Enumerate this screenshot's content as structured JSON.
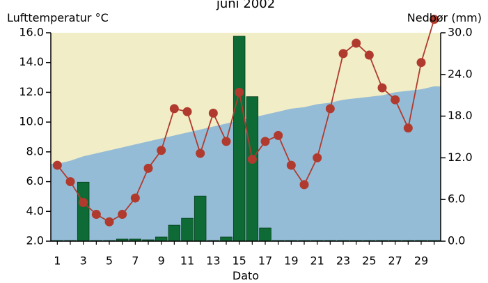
{
  "chart_data": {
    "type": "bar+line",
    "title": "juni 2002",
    "xlabel": "Dato",
    "ylabel_left": "Lufttemperatur °C",
    "ylabel_right": "Nedbør (mm)",
    "x": [
      1,
      2,
      3,
      4,
      5,
      6,
      7,
      8,
      9,
      10,
      11,
      12,
      13,
      14,
      15,
      16,
      17,
      18,
      19,
      20,
      21,
      22,
      23,
      24,
      25,
      26,
      27,
      28,
      29,
      30
    ],
    "x_tick_labels": [
      "1",
      "3",
      "5",
      "7",
      "9",
      "11",
      "13",
      "15",
      "17",
      "19",
      "21",
      "23",
      "25",
      "27",
      "29"
    ],
    "ylim_left": [
      2.0,
      16.0
    ],
    "y_ticks_left": [
      "2.0",
      "4.0",
      "6.0",
      "8.0",
      "10.0",
      "12.0",
      "14.0",
      "16.0"
    ],
    "ylim_right": [
      0.0,
      30.0
    ],
    "y_ticks_right": [
      "0.0",
      "6.0",
      "12.0",
      "18.0",
      "24.0",
      "30.0"
    ],
    "series": [
      {
        "kind": "line",
        "axis": "left",
        "color": "#b03a2e",
        "values": [
          7.1,
          6.0,
          4.6,
          3.8,
          3.3,
          3.8,
          4.9,
          6.9,
          8.1,
          10.9,
          10.7,
          7.9,
          10.6,
          8.7,
          12.0,
          7.5,
          8.7,
          9.1,
          7.1,
          5.8,
          7.6,
          10.9,
          14.6,
          15.3,
          14.5,
          12.3,
          11.5,
          9.6,
          14.0,
          16.9
        ]
      },
      {
        "kind": "bar",
        "axis": "right",
        "color": "#0e6b35",
        "values": [
          0.1,
          0.1,
          8.5,
          0.1,
          0.1,
          0.3,
          0.3,
          0.2,
          0.6,
          2.3,
          3.3,
          6.5,
          0.1,
          0.6,
          29.5,
          20.8,
          1.9,
          0.1,
          0.1,
          0.1,
          0.1,
          0.1,
          0.1,
          0.1,
          0.1,
          0.1,
          0.1,
          0.1,
          0.1,
          0.1
        ]
      },
      {
        "kind": "area",
        "axis": "left",
        "color": "#95bcd6",
        "values": [
          7.2,
          7.4,
          7.7,
          7.9,
          8.1,
          8.3,
          8.5,
          8.7,
          8.9,
          9.1,
          9.3,
          9.5,
          9.7,
          9.9,
          10.1,
          10.3,
          10.5,
          10.7,
          10.9,
          11.0,
          11.2,
          11.3,
          11.5,
          11.6,
          11.7,
          11.8,
          12.0,
          12.1,
          12.2,
          12.4
        ]
      }
    ],
    "background_color": "#f1edc6",
    "grid": false
  }
}
